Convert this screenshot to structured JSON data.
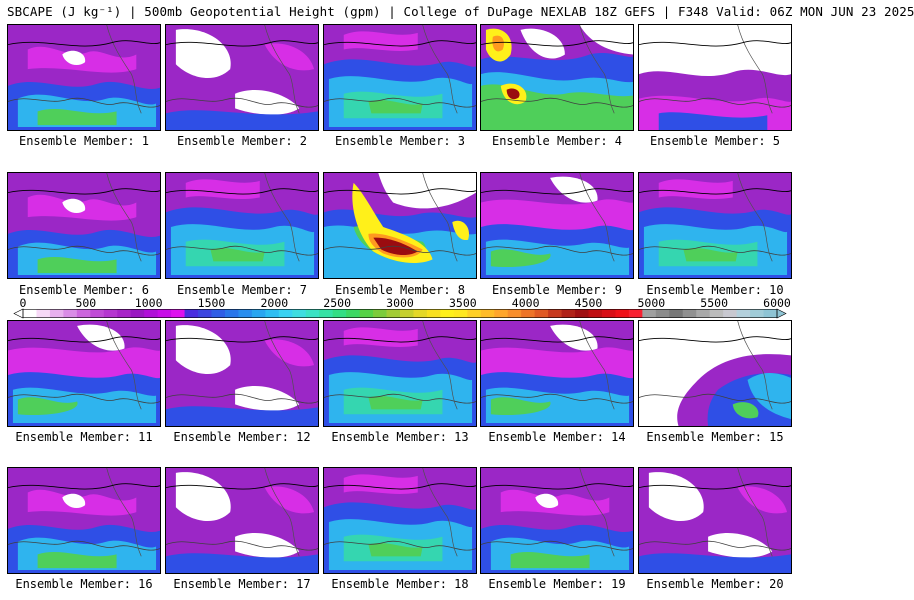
{
  "header": {
    "title": "SBCAPE (J kg⁻¹) | 500mb Geopotential Height (gpm) | College of DuPage NEXLAB 18Z GEFS | F348 Valid: 06Z MON JUN 23 2025"
  },
  "members": [
    {
      "label": "Ensemble Member: 1",
      "style": "A"
    },
    {
      "label": "Ensemble Member: 2",
      "style": "B"
    },
    {
      "label": "Ensemble Member: 3",
      "style": "C"
    },
    {
      "label": "Ensemble Member: 4",
      "style": "D"
    },
    {
      "label": "Ensemble Member: 5",
      "style": "E"
    },
    {
      "label": "Ensemble Member: 6",
      "style": "A"
    },
    {
      "label": "Ensemble Member: 7",
      "style": "C"
    },
    {
      "label": "Ensemble Member: 8",
      "style": "H"
    },
    {
      "label": "Ensemble Member: 9",
      "style": "F"
    },
    {
      "label": "Ensemble Member: 10",
      "style": "C"
    },
    {
      "label": "Ensemble Member: 11",
      "style": "F"
    },
    {
      "label": "Ensemble Member: 12",
      "style": "B"
    },
    {
      "label": "Ensemble Member: 13",
      "style": "C"
    },
    {
      "label": "Ensemble Member: 14",
      "style": "F"
    },
    {
      "label": "Ensemble Member: 15",
      "style": "G"
    },
    {
      "label": "Ensemble Member: 16",
      "style": "A"
    },
    {
      "label": "Ensemble Member: 17",
      "style": "B"
    },
    {
      "label": "Ensemble Member: 18",
      "style": "C"
    },
    {
      "label": "Ensemble Member: 19",
      "style": "A"
    },
    {
      "label": "Ensemble Member: 20",
      "style": "B"
    }
  ],
  "colorbar": {
    "ticks": [
      "0",
      "500",
      "1000",
      "1500",
      "2000",
      "2500",
      "3000",
      "3500",
      "4000",
      "4500",
      "5000",
      "5500",
      "6000"
    ],
    "min": 0,
    "max": 6000,
    "step": 125,
    "colors": [
      "#ffffff",
      "#f7d9f7",
      "#e8b0ee",
      "#d98ce6",
      "#cc66dd",
      "#c04ad6",
      "#b536d0",
      "#a825c8",
      "#9a18c2",
      "#b010d8",
      "#c80ce8",
      "#de12ee",
      "#4a2ee0",
      "#3c46e0",
      "#305ee6",
      "#2a76ea",
      "#2a8eee",
      "#2aa6f0",
      "#2ebef2",
      "#38d2f2",
      "#3edde0",
      "#3ae2c4",
      "#36e2a4",
      "#34de84",
      "#3cd864",
      "#56d246",
      "#7ccc3a",
      "#a2cc34",
      "#c6d02e",
      "#e4d828",
      "#f8e020",
      "#fff01a",
      "#ffe81e",
      "#ffd024",
      "#ffbc28",
      "#ffa62c",
      "#f88e2c",
      "#ee7428",
      "#e05a24",
      "#c83a1e",
      "#b02218",
      "#a01012",
      "#c00e12",
      "#d80e16",
      "#ee1018",
      "#f82030",
      "#a0a0a0",
      "#8c8c8c",
      "#787878",
      "#909090",
      "#a8a8a8",
      "#bcbcbc",
      "#c8c8d0",
      "#b4d0dc",
      "#a0ccd8",
      "#8ec4d4"
    ]
  }
}
